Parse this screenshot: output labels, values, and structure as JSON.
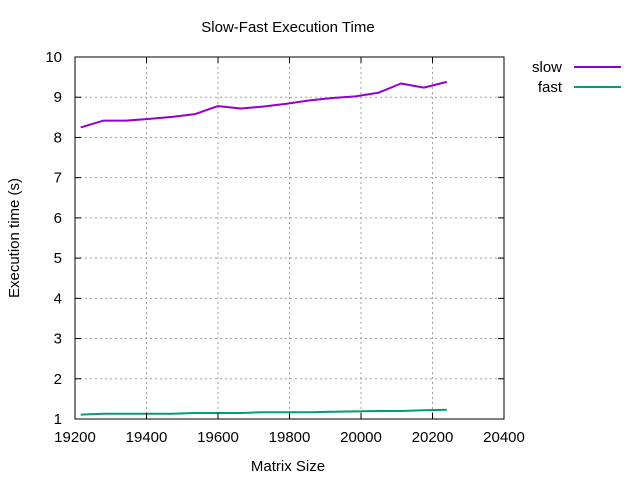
{
  "chart_data": {
    "type": "line",
    "title": "Slow-Fast Execution Time",
    "xlabel": "Matrix Size",
    "ylabel": "Execution time (s)",
    "xlim": [
      19200,
      20400
    ],
    "ylim": [
      1,
      10
    ],
    "xticks": [
      "19200",
      "19400",
      "19600",
      "19800",
      "20000",
      "20200",
      "20400"
    ],
    "yticks": [
      "1",
      "2",
      "3",
      "4",
      "5",
      "6",
      "7",
      "8",
      "9",
      "10"
    ],
    "grid": true,
    "legend_position": "top-right-outside",
    "series": [
      {
        "name": "slow",
        "color": "#9400d3",
        "x": [
          19216,
          19280,
          19344,
          19408,
          19472,
          19536,
          19600,
          19664,
          19728,
          19792,
          19856,
          19920,
          19984,
          20048,
          20112,
          20176,
          20240
        ],
        "y": [
          8.25,
          8.42,
          8.42,
          8.46,
          8.51,
          8.58,
          8.78,
          8.72,
          8.77,
          8.84,
          8.92,
          8.98,
          9.02,
          9.11,
          9.34,
          9.24,
          9.38
        ]
      },
      {
        "name": "fast",
        "color": "#009e73",
        "x": [
          19216,
          19280,
          19344,
          19408,
          19472,
          19536,
          19600,
          19664,
          19728,
          19792,
          19856,
          19920,
          19984,
          20048,
          20112,
          20176,
          20240
        ],
        "y": [
          1.11,
          1.13,
          1.13,
          1.13,
          1.13,
          1.15,
          1.15,
          1.15,
          1.17,
          1.17,
          1.17,
          1.18,
          1.19,
          1.2,
          1.2,
          1.22,
          1.23
        ]
      }
    ]
  }
}
